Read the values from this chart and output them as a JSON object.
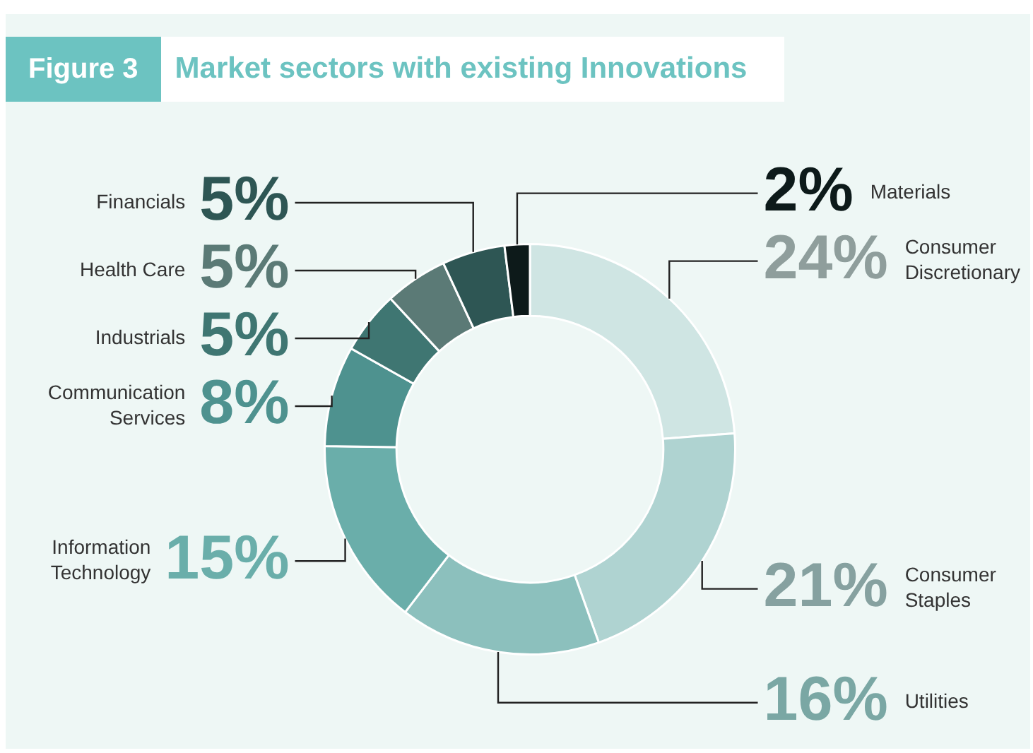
{
  "chart_data": {
    "type": "donut",
    "title": "Market sectors with existing Innovations",
    "annotations": [
      "Figure 3"
    ],
    "categories": [
      "Consumer Discretionary",
      "Consumer Staples",
      "Utilities",
      "Information Technology",
      "Communication Services",
      "Industrials",
      "Health Care",
      "Financials",
      "Materials"
    ],
    "values": [
      24,
      21,
      16,
      15,
      8,
      5,
      5,
      5,
      2
    ],
    "value_labels": [
      "24%",
      "21%",
      "16%",
      "15%",
      "8%",
      "5%",
      "5%",
      "5%",
      "2%"
    ],
    "colors": [
      "#cfe5e3",
      "#afd3d1",
      "#8cc0bd",
      "#6aaeaa",
      "#4e928f",
      "#3f7672",
      "#5b7a76",
      "#2e5654",
      "#0d1a1a"
    ],
    "legend": false
  }
}
